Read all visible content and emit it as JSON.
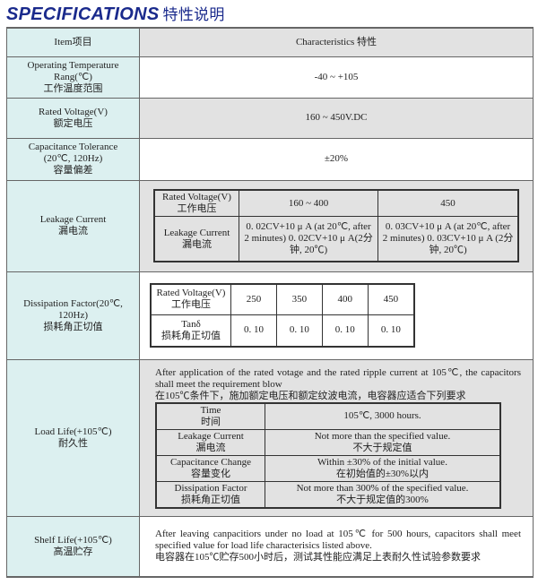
{
  "title": {
    "en": "SPECIFICATIONS",
    "cn": "特性说明"
  },
  "header": {
    "item": "Item项目",
    "characteristics": "Characteristics  特性"
  },
  "operating": {
    "label_en": "Operating Temperature Rang(℃)",
    "label_cn": "工作温度范围",
    "value": "-40 ~ +105"
  },
  "rated": {
    "label_en": "Rated Voltage(V)",
    "label_cn": "额定电压",
    "value": "160 ~ 450V.DC"
  },
  "tolerance": {
    "label_en1": "Capacitance Tolerance",
    "label_en2": "(20℃, 120Hz)",
    "label_cn": "容量偏差",
    "value": "±20%"
  },
  "leakage": {
    "label_en": "Leakage Current",
    "label_cn": "漏电流",
    "table": {
      "rv_en": "Rated Voltage(V)",
      "rv_cn": "工作电压",
      "lc_en": "Leakage Current",
      "lc_cn": "漏电流",
      "cols": [
        "160 ~ 400",
        "450"
      ],
      "vals": [
        "0. 02CV+10 μ A (at 20℃, after 2 minutes) 0. 02CV+10 μ A(2分钟, 20℃)",
        "0. 03CV+10 μ A (at 20℃, after 2 minutes) 0. 03CV+10 μ A (2分钟, 20℃)"
      ]
    }
  },
  "dissipation": {
    "label_en": "Dissipation Factor(20℃, 120Hz)",
    "label_cn": "损耗角正切值",
    "table": {
      "rv_en": "Rated Voltage(V)",
      "rv_cn": "工作电压",
      "tan_en": "Tanδ",
      "tan_cn": "损耗角正切值",
      "voltages": [
        "250",
        "350",
        "400",
        "450"
      ],
      "values": [
        "0. 10",
        "0. 10",
        "0. 10",
        "0. 10"
      ]
    }
  },
  "load": {
    "label_en": "Load Life(+105℃)",
    "label_cn": "耐久性",
    "intro_en": "After application of the rated votage and the rated ripple current at 105℃, the capacitors shall meet the requirement blow",
    "intro_cn": "在105℃条件下，施加额定电压和额定纹波电流，电容器应适合下列要求",
    "rows": [
      {
        "en": "Time",
        "cn": "时间",
        "v_en": "105℃, 3000 hours.",
        "v_cn": ""
      },
      {
        "en": "Leakage Current",
        "cn": "漏电流",
        "v_en": "Not more than the specified value.",
        "v_cn": "不大于规定值"
      },
      {
        "en": "Capacitance Change",
        "cn": "容量变化",
        "v_en": "Within ±30% of the initial value.",
        "v_cn": "在初始值的±30%以内"
      },
      {
        "en": "Dissipation Factor",
        "cn": "损耗角正切值",
        "v_en": "Not more than 300% of the specified value.",
        "v_cn": "不大于规定值的300%"
      }
    ]
  },
  "shelf": {
    "label_en": "Shelf Life(+105℃)",
    "label_cn": "高温贮存",
    "text_en": "After leaving canpacitiors under no load at 105℃ for 500 hours, capacitors shall meet specified value for load life characterisics listed above.",
    "text_cn": "电容器在105℃贮存500小时后，测试其性能应满足上表耐久性试验参数要求"
  }
}
